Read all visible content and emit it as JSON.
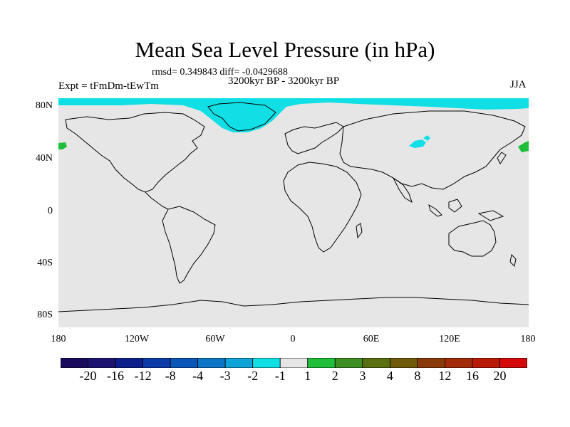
{
  "title": "Mean Sea Level Pressure (in hPa)",
  "stats_text": "rmsd= 0.349843  diff= -0.0429688",
  "period_text": "3200kyr BP - 3200kyr BP",
  "expt_text": "Expt = tFmDm-tEwTm",
  "season_text": "JJA",
  "lat_labels": [
    "80N",
    "40N",
    "0",
    "40S",
    "80S"
  ],
  "lon_labels": [
    "180",
    "120W",
    "60W",
    "0",
    "60E",
    "120E",
    "180"
  ],
  "colorbar": {
    "colors": [
      "#1a0a5e",
      "#1c1470",
      "#0c1f8a",
      "#0c3aa6",
      "#0a55b8",
      "#0c75c8",
      "#0ea4d8",
      "#10e0e6",
      "#e6e6e6",
      "#1fbf3a",
      "#3e8f23",
      "#5a6f12",
      "#6e5a0a",
      "#8a3a08",
      "#a22a08",
      "#b81a06",
      "#d40a0a"
    ],
    "labels": [
      "-20",
      "-16",
      "-12",
      "-8",
      "-4",
      "-3",
      "-2",
      "-1",
      "1",
      "2",
      "3",
      "4",
      "8",
      "12",
      "16",
      "20"
    ]
  },
  "map_colors": {
    "background": "#e6e6e6",
    "negative_fill": "#10e0e6",
    "positive_fill": "#1fbf3a",
    "coast": "#000000"
  }
}
